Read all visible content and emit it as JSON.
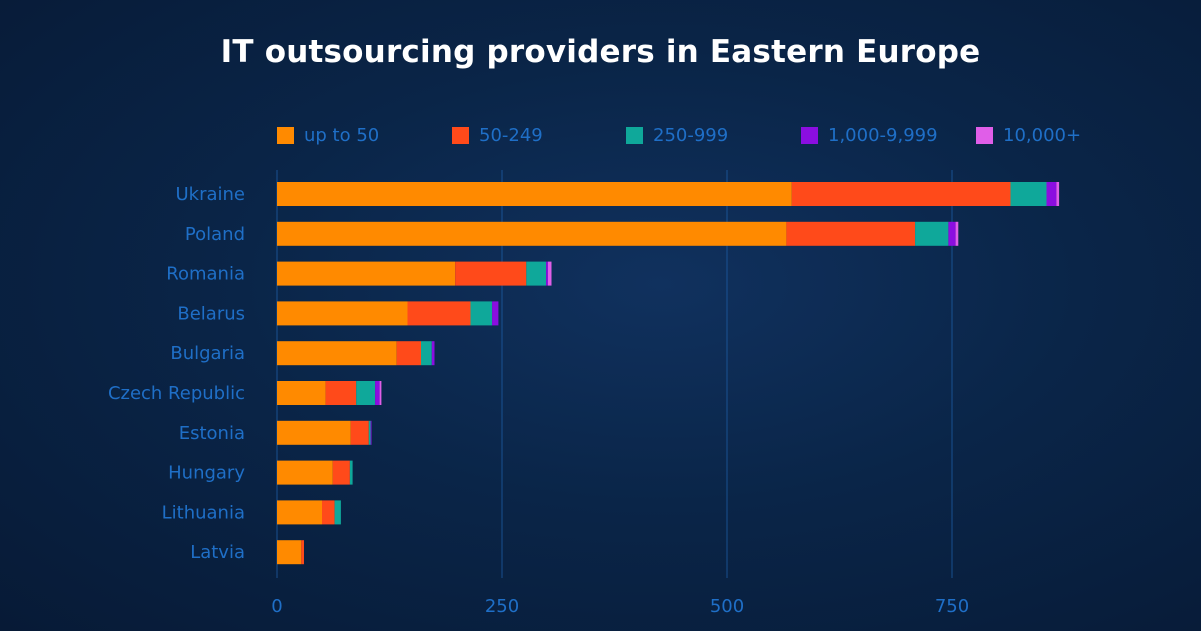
{
  "chart_data": {
    "type": "bar",
    "orientation": "horizontal",
    "stacked": true,
    "title": "IT outsourcing providers in Eastern Europe",
    "categories": [
      "Ukraine",
      "Poland",
      "Romania",
      "Belarus",
      "Bulgaria",
      "Czech Republic",
      "Estonia",
      "Hungary",
      "Lithuania",
      "Latvia"
    ],
    "series": [
      {
        "name": "up to 50",
        "color": "#ff8a00",
        "values": [
          572,
          566,
          198,
          145,
          133,
          54,
          82,
          62,
          50,
          27
        ]
      },
      {
        "name": "50-249",
        "color": "#ff4a1a",
        "values": [
          243,
          143,
          79,
          70,
          27,
          34,
          20,
          19,
          14,
          3
        ]
      },
      {
        "name": "250-999",
        "color": "#0fa89a",
        "values": [
          40,
          37,
          22,
          24,
          12,
          21,
          2,
          3,
          7,
          0
        ]
      },
      {
        "name": "1,000-9,999",
        "color": "#8b0ee0",
        "values": [
          11,
          8,
          2,
          7,
          3,
          5,
          1,
          0,
          0,
          0
        ]
      },
      {
        "name": "10,000+",
        "color": "#e05ee8",
        "values": [
          3,
          3,
          4,
          0,
          0,
          2,
          0,
          0,
          0,
          0
        ]
      }
    ],
    "xticks": [
      "0",
      "250",
      "500",
      "750"
    ],
    "xlim": [
      0,
      1000
    ],
    "grid": true,
    "legend_position": "top"
  }
}
